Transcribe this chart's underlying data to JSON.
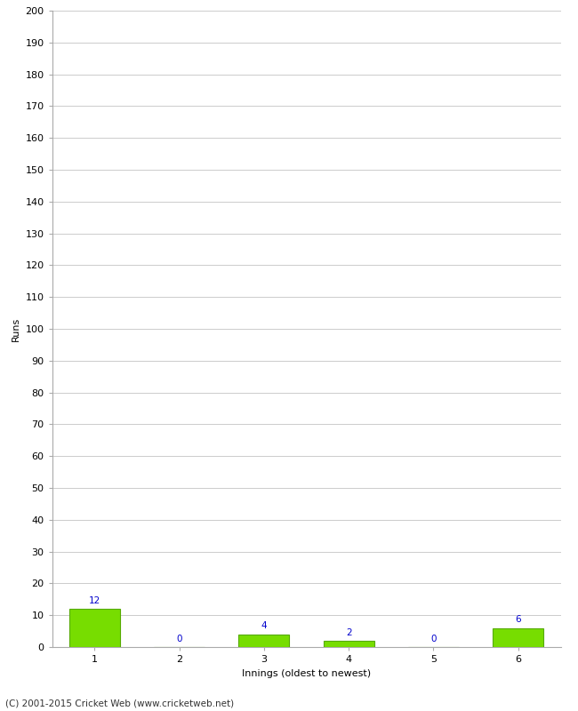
{
  "xlabel": "Innings (oldest to newest)",
  "ylabel": "Runs",
  "categories": [
    1,
    2,
    3,
    4,
    5,
    6
  ],
  "values": [
    12,
    0,
    4,
    2,
    0,
    6
  ],
  "bar_color": "#77dd00",
  "bar_edge_color": "#55aa00",
  "ylim": [
    0,
    200
  ],
  "yticks": [
    0,
    10,
    20,
    30,
    40,
    50,
    60,
    70,
    80,
    90,
    100,
    110,
    120,
    130,
    140,
    150,
    160,
    170,
    180,
    190,
    200
  ],
  "background_color": "#ffffff",
  "grid_color": "#cccccc",
  "label_color": "#0000cc",
  "footer": "(C) 2001-2015 Cricket Web (www.cricketweb.net)",
  "label_fontsize": 7.5,
  "axis_fontsize": 8,
  "footer_fontsize": 7.5,
  "tick_fontsize": 8
}
